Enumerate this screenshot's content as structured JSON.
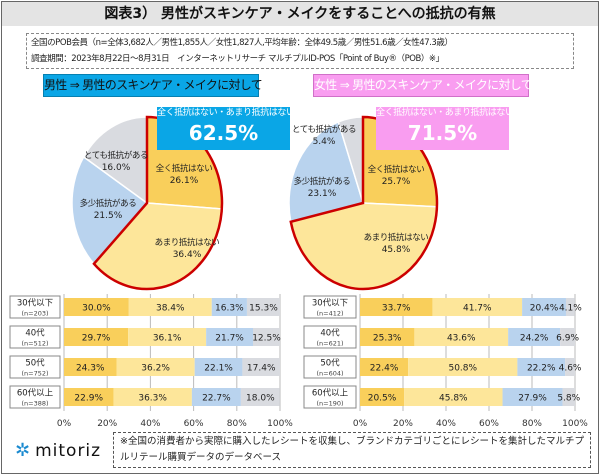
{
  "title": "図表3） 男性がスキンケア・メイクをすることへの抵抗の有無",
  "info": {
    "line1": "全国のPOB会員（n=全体3,682人／男性1,855人／女性1,827人,平均年齢：全体49.5歳／男性51.6歳／女性47.3歳）",
    "line2": "調査期間：2023年8月22日～8月31日　インターネットリサーチ マルチプルID-POS「Point of Buy®（POB）※」"
  },
  "colors": {
    "strong_none": "#f9cf5b",
    "mostly_none": "#fde69a",
    "some": "#b9d3ee",
    "very": "#d9dbe0",
    "highlight": "#cc0000",
    "male_accent": "#0aa6e6",
    "female_accent": "#f99df0"
  },
  "footer_note": "※全国の消費者から実際に購入したレシートを収集し、ブランドカテゴリごとにレシートを集計したマルチプルリテール購買データのデータベース",
  "logo": "mitoriz",
  "chart_data": [
    {
      "type": "pie",
      "title": "男性 ⇒ 男性のスキンケア・メイクに対して",
      "callout_label": "全く抵抗はない・あまり抵抗はない",
      "callout_value": "62.5%",
      "slices": [
        {
          "label": "全く抵抗はない",
          "value": 26.1
        },
        {
          "label": "あまり抵抗はない",
          "value": 36.4
        },
        {
          "label": "多少抵抗がある",
          "value": 21.5
        },
        {
          "label": "とても抵抗がある",
          "value": 16.0
        }
      ]
    },
    {
      "type": "pie",
      "title": "女性 ⇒ 男性のスキンケア・メイクに対して",
      "callout_label": "全く抵抗はない・あまり抵抗はない",
      "callout_value": "71.5%",
      "slices": [
        {
          "label": "全く抵抗はない",
          "value": 25.7
        },
        {
          "label": "あまり抵抗はない",
          "value": 45.8
        },
        {
          "label": "多少抵抗がある",
          "value": 23.1
        },
        {
          "label": "とても抵抗がある",
          "value": 5.4
        }
      ]
    },
    {
      "type": "bar",
      "stacked": true,
      "orientation": "horizontal",
      "xlim": [
        0,
        100
      ],
      "xticks": [
        "0%",
        "20%",
        "40%",
        "60%",
        "80%",
        "100%"
      ],
      "grid": true,
      "categories": [
        {
          "label": "30代以下",
          "n": "(n=203)"
        },
        {
          "label": "40代",
          "n": "(n=512)"
        },
        {
          "label": "50代",
          "n": "(n=752)"
        },
        {
          "label": "60代以上",
          "n": "(n=388)"
        }
      ],
      "series": [
        {
          "values": [
            30.0,
            29.7,
            24.3,
            22.9
          ]
        },
        {
          "values": [
            38.4,
            36.1,
            36.2,
            36.3
          ]
        },
        {
          "values": [
            16.3,
            21.7,
            22.1,
            22.7
          ]
        },
        {
          "values": [
            15.3,
            12.5,
            17.4,
            18.0
          ]
        }
      ]
    },
    {
      "type": "bar",
      "stacked": true,
      "orientation": "horizontal",
      "xlim": [
        0,
        100
      ],
      "xticks": [
        "0%",
        "20%",
        "40%",
        "60%",
        "80%",
        "100%"
      ],
      "grid": true,
      "categories": [
        {
          "label": "30代以下",
          "n": "(n=412)"
        },
        {
          "label": "40代",
          "n": "(n=621)"
        },
        {
          "label": "50代",
          "n": "(n=604)"
        },
        {
          "label": "60代以上",
          "n": "(n=190)"
        }
      ],
      "series": [
        {
          "values": [
            33.7,
            25.3,
            22.4,
            20.5
          ]
        },
        {
          "values": [
            41.7,
            43.6,
            50.8,
            45.8
          ]
        },
        {
          "values": [
            20.4,
            24.2,
            22.2,
            27.9
          ]
        },
        {
          "values": [
            4.1,
            6.9,
            4.6,
            5.8
          ]
        }
      ]
    }
  ]
}
